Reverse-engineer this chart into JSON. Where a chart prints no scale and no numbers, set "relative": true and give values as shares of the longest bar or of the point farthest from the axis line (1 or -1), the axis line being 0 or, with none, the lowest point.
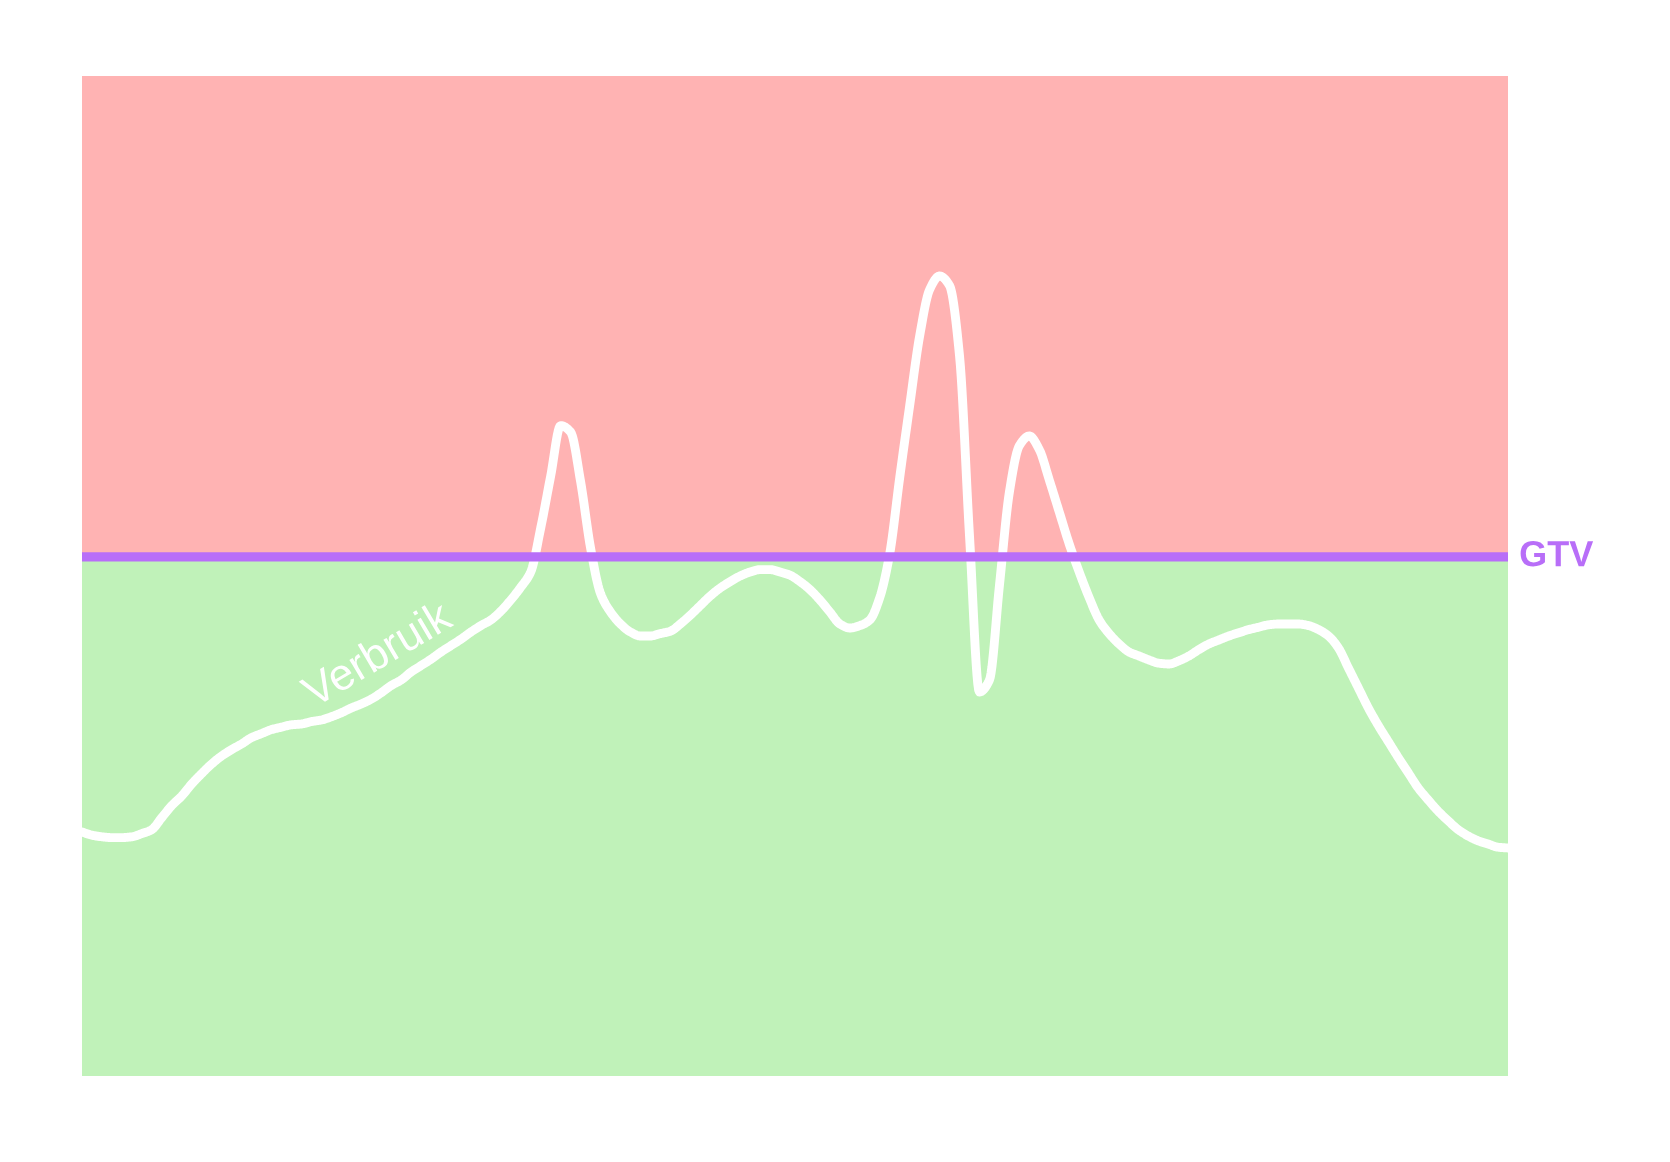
{
  "chart_data": {
    "type": "line",
    "relative": true,
    "categories": [
      null,
      null,
      null,
      null,
      null,
      null,
      null,
      null,
      null,
      null,
      null,
      null,
      null,
      null,
      null,
      null,
      null,
      null,
      null,
      null,
      null,
      null,
      null,
      null,
      null,
      null,
      null,
      null,
      null,
      null,
      null,
      null,
      null,
      null,
      null,
      null,
      null,
      null,
      null,
      null,
      null,
      null,
      null,
      null,
      null,
      null,
      null,
      null,
      null,
      null,
      null,
      null,
      null,
      null,
      null,
      null,
      null,
      null,
      null,
      null,
      null,
      null,
      null,
      null,
      null,
      null,
      null,
      null,
      null,
      null,
      null,
      null,
      null,
      null,
      null,
      null,
      null,
      null,
      null,
      null,
      null,
      null,
      null,
      null,
      null,
      null,
      null,
      null,
      null,
      null,
      null,
      null,
      null,
      null,
      null,
      null,
      null,
      null,
      null,
      null,
      null,
      null,
      null,
      null,
      null,
      null,
      null,
      null,
      null,
      null,
      null,
      null,
      null,
      null,
      null,
      null,
      null,
      null,
      null,
      null,
      null,
      null,
      null,
      null,
      null,
      null,
      null,
      null,
      null,
      null,
      null,
      null,
      null,
      null,
      null,
      null,
      null,
      null,
      null,
      null,
      null,
      null,
      null,
      null
    ],
    "series": [
      {
        "name": "Verbruik",
        "color": "#ffffff",
        "values": [
          0.305,
          0.301,
          0.299,
          0.298,
          0.298,
          0.299,
          0.303,
          0.308,
          0.323,
          0.338,
          0.35,
          0.365,
          0.378,
          0.39,
          0.4,
          0.408,
          0.415,
          0.423,
          0.428,
          0.433,
          0.436,
          0.439,
          0.44,
          0.443,
          0.445,
          0.449,
          0.454,
          0.46,
          0.465,
          0.471,
          0.479,
          0.488,
          0.495,
          0.505,
          0.513,
          0.521,
          0.53,
          0.538,
          0.546,
          0.555,
          0.563,
          0.57,
          0.581,
          0.595,
          0.611,
          0.63,
          0.685,
          0.75,
          0.813,
          0.805,
          0.743,
          0.66,
          0.603,
          0.58,
          0.565,
          0.555,
          0.55,
          0.55,
          0.553,
          0.556,
          0.565,
          0.576,
          0.588,
          0.6,
          0.61,
          0.618,
          0.625,
          0.63,
          0.633,
          0.633,
          0.63,
          0.626,
          0.618,
          0.608,
          0.595,
          0.58,
          0.565,
          0.56,
          0.563,
          0.57,
          0.598,
          0.653,
          0.748,
          0.838,
          0.925,
          0.983,
          1.0,
          0.988,
          0.9,
          0.675,
          0.48,
          0.495,
          0.613,
          0.73,
          0.788,
          0.8,
          0.783,
          0.745,
          0.705,
          0.665,
          0.63,
          0.598,
          0.57,
          0.553,
          0.54,
          0.53,
          0.525,
          0.52,
          0.516,
          0.515,
          0.519,
          0.525,
          0.533,
          0.54,
          0.545,
          0.55,
          0.554,
          0.558,
          0.561,
          0.564,
          0.565,
          0.565,
          0.565,
          0.563,
          0.558,
          0.55,
          0.535,
          0.51,
          0.485,
          0.46,
          0.438,
          0.418,
          0.398,
          0.379,
          0.36,
          0.345,
          0.331,
          0.319,
          0.308,
          0.3,
          0.294,
          0.29,
          0.286,
          0.285
        ]
      }
    ],
    "ref_lines": [
      {
        "axis": "y",
        "value": 0.649,
        "label": "GTV",
        "color": "#b86ef8"
      }
    ],
    "bands": [
      {
        "axis": "y",
        "from": 0,
        "to": 0.649,
        "color": "#c0f2b9"
      },
      {
        "axis": "y",
        "from": 0.649,
        "to": 1.25,
        "color": "#ffb3b3"
      }
    ]
  }
}
